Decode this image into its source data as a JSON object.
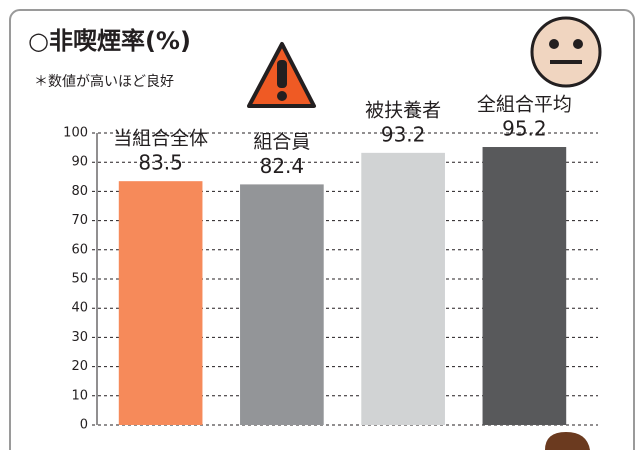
{
  "chart_data": {
    "type": "bar",
    "title": "○非喫煙率(%)",
    "subtitle": "＊数値が高いほど良好",
    "categories": [
      "当組合全体",
      "組合員",
      "被扶養者",
      "全組合平均"
    ],
    "values": [
      83.5,
      82.4,
      93.2,
      95.2
    ],
    "colors": [
      "#f68a5a",
      "#939598",
      "#d1d3d4",
      "#58595b"
    ],
    "ylim": [
      0,
      100
    ],
    "yticks": [
      0,
      10,
      20,
      30,
      40,
      50,
      60,
      70,
      80,
      90,
      100
    ],
    "grid": true
  }
}
